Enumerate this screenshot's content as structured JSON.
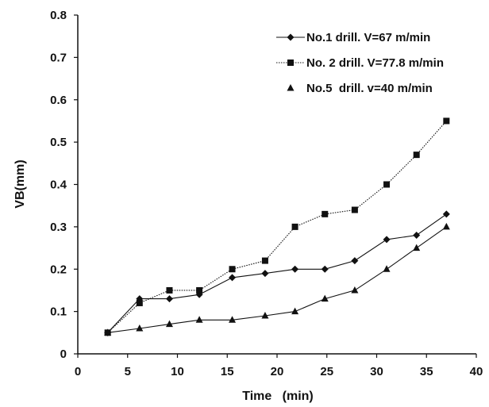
{
  "chart_data": {
    "type": "line",
    "title": "",
    "xlabel": "Time   (min)",
    "ylabel": "VB(mm)",
    "xlim": [
      0,
      40
    ],
    "ylim": [
      0,
      0.8
    ],
    "xticks": [
      0,
      5,
      10,
      15,
      20,
      25,
      30,
      35,
      40
    ],
    "yticks": [
      0,
      0.1,
      0.2,
      0.3,
      0.4,
      0.5,
      0.6,
      0.7,
      0.8
    ],
    "xtick_labels": [
      "0",
      "5",
      "10",
      "15",
      "20",
      "25",
      "30",
      "35",
      "40"
    ],
    "ytick_labels": [
      "0",
      "0.1",
      "0.2",
      "0.3",
      "0.4",
      "0.5",
      "0.6",
      "0.7",
      "0.8"
    ],
    "grid": false,
    "legend_position": "top-right",
    "series": [
      {
        "name": "No.1 drill. V=67 m/min",
        "marker": "diamond",
        "line": "solid",
        "x": [
          3,
          6.2,
          9.2,
          12.2,
          15.5,
          18.8,
          21.8,
          24.8,
          27.8,
          31,
          34,
          37
        ],
        "y": [
          0.05,
          0.13,
          0.13,
          0.14,
          0.18,
          0.19,
          0.2,
          0.2,
          0.22,
          0.27,
          0.28,
          0.33
        ]
      },
      {
        "name": "No. 2 drill. V=77.8 m/min",
        "marker": "square",
        "line": "dotted",
        "x": [
          3,
          6.2,
          9.2,
          12.2,
          15.5,
          18.8,
          21.8,
          24.8,
          27.8,
          31,
          34,
          37
        ],
        "y": [
          0.05,
          0.12,
          0.15,
          0.15,
          0.2,
          0.22,
          0.3,
          0.33,
          0.34,
          0.4,
          0.47,
          0.55
        ]
      },
      {
        "name": "No.5  drill. v=40 m/min",
        "marker": "triangle",
        "line": "solid",
        "x": [
          3,
          6.2,
          9.2,
          12.2,
          15.5,
          18.8,
          21.8,
          24.8,
          27.8,
          31,
          34,
          37
        ],
        "y": [
          0.05,
          0.06,
          0.07,
          0.08,
          0.08,
          0.09,
          0.1,
          0.13,
          0.15,
          0.2,
          0.25,
          0.3
        ]
      }
    ]
  }
}
